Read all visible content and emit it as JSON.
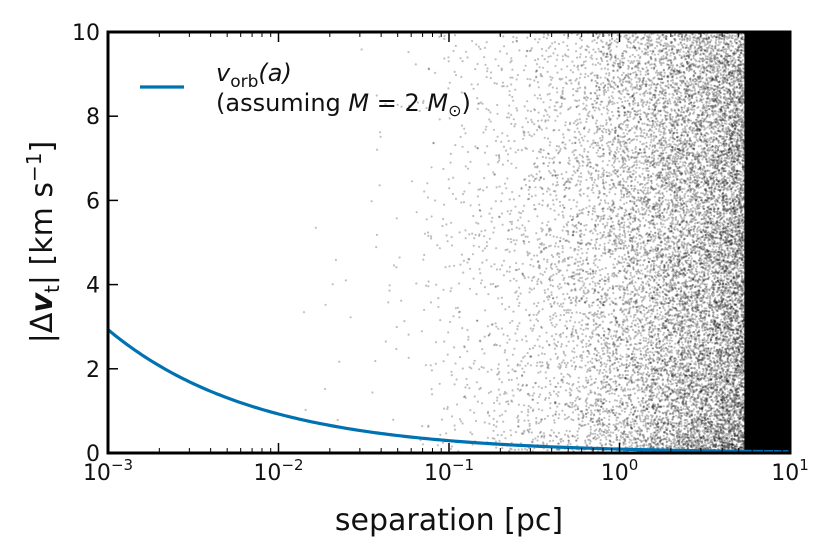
{
  "chart_data": {
    "type": "scatter",
    "xlabel": "separation [pc]",
    "ylabel_parts": {
      "open": "|Δ",
      "vec": "v",
      "sub": "t",
      "close": "|  [km s",
      "sup": "−1",
      "end": "]"
    },
    "xscale": "log",
    "xlim": [
      0.001,
      10
    ],
    "ylim": [
      0,
      10
    ],
    "grid": false,
    "legend_position": "top-left",
    "x_ticks": [
      {
        "base": "10",
        "exp": "−3",
        "value": 0.001
      },
      {
        "base": "10",
        "exp": "−2",
        "value": 0.01
      },
      {
        "base": "10",
        "exp": "−1",
        "value": 0.1
      },
      {
        "base": "10",
        "exp": "0",
        "value": 1
      },
      {
        "base": "10",
        "exp": "1",
        "value": 10
      }
    ],
    "y_ticks": [
      "0",
      "2",
      "4",
      "6",
      "8",
      "10"
    ],
    "series": [
      {
        "kind": "line",
        "legend_line1": {
          "base": "v",
          "sub": "orb",
          "rest": "(a)"
        },
        "legend_line2": {
          "pre": "(assuming ",
          "var": "M",
          "mid": " = 2 ",
          "mvar": "M",
          "sun": "⊙",
          "post": ")"
        },
        "color": "#0072b2",
        "x": [
          0.001,
          0.002,
          0.005,
          0.01,
          0.02,
          0.05,
          0.1,
          0.2,
          0.5,
          1,
          2,
          5,
          10
        ],
        "y": [
          2.93,
          2.07,
          1.31,
          0.93,
          0.66,
          0.41,
          0.29,
          0.21,
          0.13,
          0.093,
          0.066,
          0.041,
          0.029
        ]
      },
      {
        "kind": "scatter",
        "color": "#000000",
        "density_profile": "point density rises steeply with separation; sparse below 0.1 pc, saturating near 10 pc",
        "x_range": [
          0.003,
          10
        ],
        "y_range": [
          0,
          10
        ]
      }
    ]
  }
}
